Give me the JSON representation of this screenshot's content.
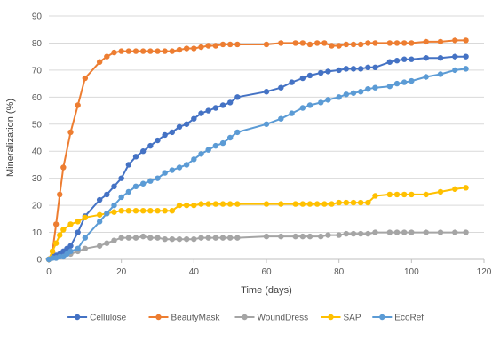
{
  "chart_data": {
    "type": "line",
    "xlabel": "Time (days)",
    "ylabel": "Mineralization (%)",
    "xlim": [
      0,
      120
    ],
    "ylim": [
      0,
      90
    ],
    "xticks": [
      0,
      20,
      40,
      60,
      80,
      100,
      120
    ],
    "yticks": [
      0,
      10,
      20,
      30,
      40,
      50,
      60,
      70,
      80,
      90
    ],
    "xtick_labels": [
      "0",
      "20",
      "40",
      "60",
      "80",
      "100",
      "120"
    ],
    "ytick_labels": [
      "0",
      "10",
      "20",
      "30",
      "40",
      "50",
      "60",
      "70",
      "80",
      "90"
    ],
    "grid": "horizontal",
    "legend_position": "bottom",
    "series": [
      {
        "name": "Cellulose",
        "color": "#4472C4",
        "x": [
          0,
          1,
          2,
          3,
          4,
          5,
          6,
          8,
          10,
          14,
          16,
          18,
          20,
          22,
          24,
          26,
          28,
          30,
          32,
          34,
          36,
          38,
          40,
          42,
          44,
          46,
          48,
          50,
          52,
          60,
          64,
          67,
          70,
          72,
          75,
          77,
          80,
          82,
          84,
          86,
          88,
          90,
          94,
          96,
          98,
          100,
          104,
          108,
          112,
          115
        ],
        "y": [
          0,
          1,
          1.5,
          2,
          3,
          4,
          5,
          10,
          16,
          22,
          24,
          27,
          30,
          35,
          38,
          40,
          42,
          44,
          46,
          47,
          49,
          50,
          52,
          54,
          55,
          56,
          57,
          58,
          60,
          62,
          63.5,
          65.5,
          67,
          68,
          69,
          69.5,
          70,
          70.5,
          70.5,
          70.5,
          71,
          71,
          73,
          73.5,
          74,
          74,
          74.5,
          74.5,
          75,
          75
        ]
      },
      {
        "name": "BeautyMask",
        "color": "#ED7D31",
        "x": [
          0,
          1,
          2,
          3,
          4,
          6,
          8,
          10,
          14,
          16,
          18,
          20,
          22,
          24,
          26,
          28,
          30,
          32,
          34,
          36,
          38,
          40,
          42,
          44,
          46,
          48,
          50,
          52,
          60,
          64,
          68,
          70,
          72,
          74,
          76,
          78,
          80,
          82,
          84,
          86,
          88,
          90,
          94,
          96,
          98,
          100,
          104,
          108,
          112,
          115
        ],
        "y": [
          0,
          3,
          13,
          24,
          34,
          47,
          57,
          67,
          73,
          75,
          76.5,
          77,
          77,
          77,
          77,
          77,
          77,
          77,
          77,
          77.5,
          78,
          78,
          78.5,
          79,
          79,
          79.5,
          79.5,
          79.5,
          79.5,
          80,
          80,
          80,
          79.5,
          80,
          80,
          79,
          79,
          79.5,
          79.5,
          79.5,
          80,
          80,
          80,
          80,
          80,
          80,
          80.5,
          80.5,
          81,
          81
        ]
      },
      {
        "name": "WoundDress",
        "color": "#A5A5A5",
        "x": [
          0,
          2,
          4,
          6,
          8,
          10,
          14,
          16,
          18,
          20,
          22,
          24,
          26,
          28,
          30,
          32,
          34,
          36,
          38,
          40,
          42,
          44,
          46,
          48,
          50,
          52,
          60,
          64,
          68,
          70,
          72,
          75,
          77,
          80,
          82,
          84,
          86,
          88,
          90,
          94,
          96,
          98,
          100,
          104,
          108,
          112,
          115
        ],
        "y": [
          0,
          0.5,
          1,
          2,
          3,
          4,
          5,
          6,
          7,
          8,
          8,
          8,
          8.5,
          8,
          8,
          7.5,
          7.5,
          7.5,
          7.5,
          7.5,
          8,
          8,
          8,
          8,
          8,
          8,
          8.5,
          8.5,
          8.5,
          8.5,
          8.5,
          8.5,
          9,
          9,
          9.5,
          9.5,
          9.5,
          9.5,
          10,
          10,
          10,
          10,
          10,
          10,
          10,
          10,
          10
        ]
      },
      {
        "name": "SAP",
        "color": "#FFC000",
        "x": [
          0,
          1,
          2,
          3,
          4,
          6,
          8,
          10,
          14,
          16,
          18,
          20,
          22,
          24,
          26,
          28,
          30,
          32,
          34,
          36,
          38,
          40,
          42,
          44,
          46,
          48,
          50,
          52,
          60,
          64,
          68,
          70,
          72,
          74,
          76,
          78,
          80,
          82,
          84,
          86,
          88,
          90,
          94,
          96,
          98,
          100,
          104,
          108,
          112,
          115
        ],
        "y": [
          0,
          3,
          6,
          9,
          11,
          13,
          14,
          15.5,
          16.5,
          17,
          17.5,
          18,
          18,
          18,
          18,
          18,
          18,
          18,
          18,
          20,
          20,
          20,
          20.5,
          20.5,
          20.5,
          20.5,
          20.5,
          20.5,
          20.5,
          20.5,
          20.5,
          20.5,
          20.5,
          20.5,
          20.5,
          20.5,
          21,
          21,
          21,
          21,
          21,
          23.5,
          24,
          24,
          24,
          24,
          24,
          25,
          26,
          26.5
        ]
      },
      {
        "name": "EcoRef",
        "color": "#5B9BD5",
        "x": [
          0,
          1,
          2,
          3,
          4,
          5,
          6,
          8,
          10,
          14,
          16,
          18,
          20,
          22,
          24,
          26,
          28,
          30,
          32,
          34,
          36,
          38,
          40,
          42,
          44,
          46,
          48,
          50,
          52,
          60,
          64,
          67,
          70,
          72,
          75,
          77,
          80,
          82,
          84,
          86,
          88,
          90,
          94,
          96,
          98,
          100,
          104,
          108,
          112,
          115
        ],
        "y": [
          0,
          0.5,
          0.5,
          1,
          1,
          2,
          3,
          4,
          8,
          14,
          17,
          20,
          23,
          25,
          27,
          28,
          29,
          30,
          32,
          33,
          34,
          35,
          37,
          39,
          40.5,
          42,
          43,
          45,
          47,
          50,
          52,
          54,
          56,
          57,
          58,
          59,
          60,
          61,
          61.5,
          62,
          63,
          63.5,
          64,
          65,
          65.5,
          66,
          67.5,
          68.5,
          70,
          70.5
        ]
      }
    ]
  }
}
